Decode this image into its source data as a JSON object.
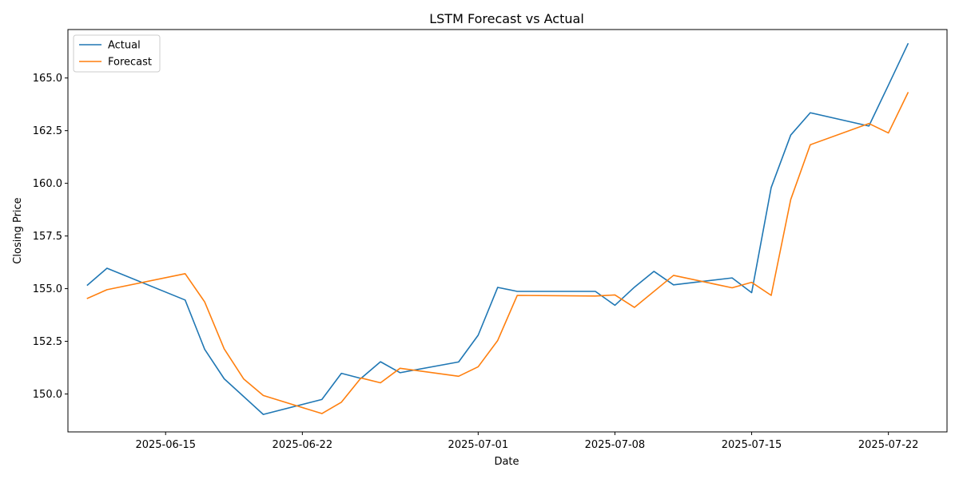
{
  "chart_data": {
    "type": "line",
    "title": "LSTM Forecast vs Actual",
    "xlabel": "Date",
    "ylabel": "Closing Price",
    "xlim": [
      "2025-06-10",
      "2025-07-25"
    ],
    "ylim": [
      148.2,
      167.3
    ],
    "x_ticks": [
      "2025-06-15",
      "2025-06-22",
      "2025-07-01",
      "2025-07-08",
      "2025-07-15",
      "2025-07-22"
    ],
    "y_ticks": [
      "150.0",
      "152.5",
      "155.0",
      "157.5",
      "160.0",
      "162.5",
      "165.0"
    ],
    "grid": false,
    "legend": "upper left",
    "series": [
      {
        "name": "Actual",
        "color": "#1f77b4",
        "points": [
          [
            "2025-06-11",
            155.17
          ],
          [
            "2025-06-12",
            155.97
          ],
          [
            "2025-06-16",
            154.46
          ],
          [
            "2025-06-17",
            152.12
          ],
          [
            "2025-06-18",
            150.72
          ],
          [
            "2025-06-20",
            149.03
          ],
          [
            "2025-06-23",
            149.74
          ],
          [
            "2025-06-24",
            150.98
          ],
          [
            "2025-06-25",
            150.74
          ],
          [
            "2025-06-26",
            151.53
          ],
          [
            "2025-06-27",
            151.01
          ],
          [
            "2025-06-30",
            151.52
          ],
          [
            "2025-07-01",
            152.79
          ],
          [
            "2025-07-02",
            155.06
          ],
          [
            "2025-07-03",
            154.87
          ],
          [
            "2025-07-07",
            154.87
          ],
          [
            "2025-07-08",
            154.21
          ],
          [
            "2025-07-09",
            155.07
          ],
          [
            "2025-07-10",
            155.82
          ],
          [
            "2025-07-11",
            155.18
          ],
          [
            "2025-07-14",
            155.51
          ],
          [
            "2025-07-15",
            154.81
          ],
          [
            "2025-07-16",
            159.8
          ],
          [
            "2025-07-17",
            162.29
          ],
          [
            "2025-07-18",
            163.35
          ],
          [
            "2025-07-21",
            162.72
          ],
          [
            "2025-07-22",
            164.66
          ],
          [
            "2025-07-23",
            166.62
          ]
        ]
      },
      {
        "name": "Forecast",
        "color": "#ff7f0e",
        "points": [
          [
            "2025-06-11",
            154.54
          ],
          [
            "2025-06-12",
            154.95
          ],
          [
            "2025-06-16",
            155.71
          ],
          [
            "2025-06-17",
            154.37
          ],
          [
            "2025-06-18",
            152.14
          ],
          [
            "2025-06-19",
            150.71
          ],
          [
            "2025-06-20",
            149.93
          ],
          [
            "2025-06-23",
            149.07
          ],
          [
            "2025-06-24",
            149.61
          ],
          [
            "2025-06-25",
            150.76
          ],
          [
            "2025-06-26",
            150.53
          ],
          [
            "2025-06-27",
            151.22
          ],
          [
            "2025-06-30",
            150.84
          ],
          [
            "2025-07-01",
            151.29
          ],
          [
            "2025-07-02",
            152.54
          ],
          [
            "2025-07-03",
            154.68
          ],
          [
            "2025-07-07",
            154.65
          ],
          [
            "2025-07-08",
            154.7
          ],
          [
            "2025-07-09",
            154.11
          ],
          [
            "2025-07-11",
            155.63
          ],
          [
            "2025-07-14",
            155.04
          ],
          [
            "2025-07-15",
            155.3
          ],
          [
            "2025-07-16",
            154.68
          ],
          [
            "2025-07-17",
            159.23
          ],
          [
            "2025-07-18",
            161.83
          ],
          [
            "2025-07-21",
            162.84
          ],
          [
            "2025-07-22",
            162.39
          ],
          [
            "2025-07-23",
            164.3
          ]
        ]
      }
    ]
  }
}
